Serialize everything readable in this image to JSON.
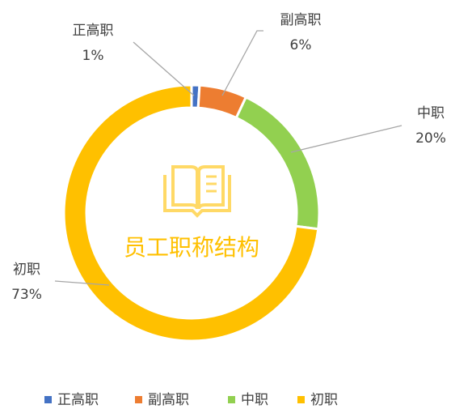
{
  "chart_data": {
    "type": "pie",
    "title": "员工职称结构",
    "categories": [
      "正高职",
      "副高职",
      "中职",
      "初职"
    ],
    "values": [
      1,
      6,
      20,
      73
    ],
    "value_labels": [
      "1%",
      "6%",
      "20%",
      "73%"
    ],
    "colors": [
      "#4472c4",
      "#ed7d31",
      "#92d050",
      "#ffc000"
    ],
    "legend": "bottom"
  }
}
